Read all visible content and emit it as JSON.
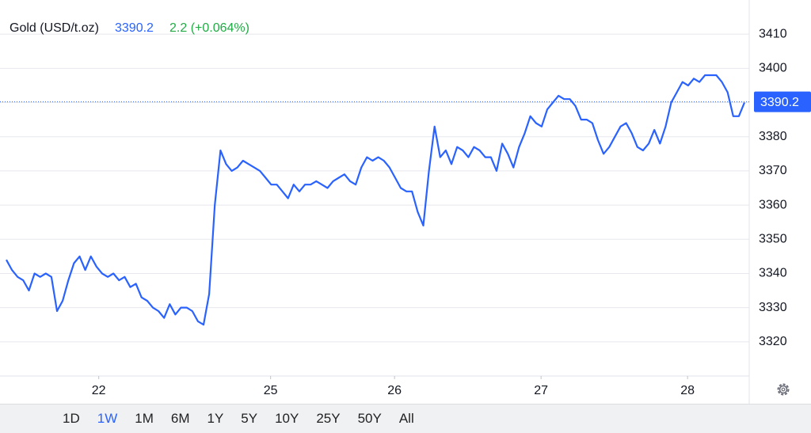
{
  "chart_data": {
    "type": "line",
    "title": "Gold (USD/t.oz)",
    "last": 3390.2,
    "change": "2.2 (+0.064%)",
    "color": "#2962ff",
    "values": [
      3344,
      3341,
      3339,
      3338,
      3335,
      3340,
      3339,
      3340,
      3339,
      3329,
      3332,
      3338,
      3343,
      3345,
      3341,
      3345,
      3342,
      3340,
      3339,
      3340,
      3338,
      3339,
      3336,
      3337,
      3333,
      3332,
      3330,
      3329,
      3327,
      3331,
      3328,
      3330,
      3330,
      3329,
      3326,
      3325,
      3334,
      3360,
      3376,
      3372,
      3370,
      3371,
      3373,
      3372,
      3371,
      3370,
      3368,
      3366,
      3366,
      3364,
      3362,
      3366,
      3364,
      3366,
      3366,
      3367,
      3366,
      3365,
      3367,
      3368,
      3369,
      3367,
      3366,
      3371,
      3374,
      3373,
      3374,
      3373,
      3371,
      3368,
      3365,
      3364,
      3364,
      3358,
      3354,
      3370,
      3383,
      3374,
      3376,
      3372,
      3377,
      3376,
      3374,
      3377,
      3376,
      3374,
      3374,
      3370,
      3378,
      3375,
      3371,
      3377,
      3381,
      3386,
      3384,
      3383,
      3388,
      3390,
      3392,
      3391,
      3391,
      3389,
      3385,
      3385,
      3384,
      3379,
      3375,
      3377,
      3380,
      3383,
      3384,
      3381,
      3377,
      3376,
      3378,
      3382,
      3378,
      3383,
      3390,
      3393,
      3396,
      3395,
      3397,
      3396,
      3398,
      3398,
      3398,
      3396,
      3393,
      3386,
      3386,
      3390
    ],
    "ylim": [
      3310,
      3420
    ],
    "yticks": [
      3320,
      3330,
      3340,
      3350,
      3360,
      3370,
      3380,
      3390,
      3400,
      3410
    ],
    "xlim": [
      0,
      131
    ],
    "xticks": [
      {
        "value": 16.4,
        "label": "22"
      },
      {
        "value": 46.9,
        "label": "25"
      },
      {
        "value": 68.9,
        "label": "26"
      },
      {
        "value": 94.9,
        "label": "27"
      },
      {
        "value": 120.9,
        "label": "28"
      }
    ],
    "grid": true,
    "ranges": [
      "1D",
      "1W",
      "1M",
      "6M",
      "1Y",
      "5Y",
      "10Y",
      "25Y",
      "50Y",
      "All"
    ],
    "selected_range": "1W"
  }
}
